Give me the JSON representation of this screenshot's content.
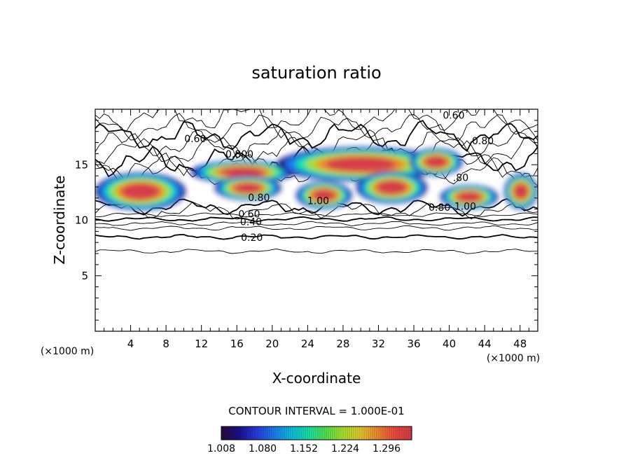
{
  "chart_data": {
    "type": "heatmap",
    "title": "saturation ratio",
    "xlabel": "X-coordinate",
    "ylabel": "Z-coordinate",
    "x_unit_left": "(×1000 m)",
    "x_unit_right": "(×1000 m)",
    "xlim": [
      0,
      50
    ],
    "ylim": [
      0,
      20
    ],
    "xticks": [
      4,
      8,
      12,
      16,
      20,
      24,
      28,
      32,
      36,
      40,
      44,
      48
    ],
    "yticks": [
      5,
      10,
      15
    ],
    "contour_interval_text": "CONTOUR INTERVAL = 1.000E-01",
    "contour_labels": [
      {
        "text": "0.60",
        "x": 40.5,
        "z": 19.4
      },
      {
        "text": "0.60",
        "x": 11.3,
        "z": 17.3
      },
      {
        "text": "0.80",
        "x": 43.8,
        "z": 17.1
      },
      {
        "text": "0.800",
        "x": 16.3,
        "z": 15.9
      },
      {
        "text": "0.80",
        "x": 18.5,
        "z": 12.0
      },
      {
        "text": "1.00",
        "x": 25.2,
        "z": 11.7
      },
      {
        "text": ".80",
        "x": 41.3,
        "z": 13.8
      },
      {
        "text": "0.80",
        "x": 38.9,
        "z": 11.1
      },
      {
        "text": "1.00",
        "x": 41.8,
        "z": 11.2
      },
      {
        "text": "0.60",
        "x": 17.4,
        "z": 10.5
      },
      {
        "text": "0.40",
        "x": 17.6,
        "z": 9.8
      },
      {
        "text": "0.20",
        "x": 17.7,
        "z": 8.4
      }
    ],
    "colorbar": {
      "min": 1.008,
      "max": 1.34,
      "ticks": [
        "1.008",
        "1.080",
        "1.152",
        "1.224",
        "1.296"
      ],
      "colors": [
        "#2a0a3a",
        "#1a0f8c",
        "#2a3ad8",
        "#1e78f0",
        "#10b8e0",
        "#18e0a8",
        "#50e050",
        "#a8e030",
        "#e0c830",
        "#ee8a30",
        "#ec4a3c",
        "#d43c48"
      ]
    },
    "supersaturated_regions": [
      {
        "x": [
          0.0,
          10.2
        ],
        "z": [
          10.9,
          14.3
        ]
      },
      {
        "x": [
          10.8,
          22.5
        ],
        "z": [
          13.3,
          15.4
        ]
      },
      {
        "x": [
          13.5,
          21.0
        ],
        "z": [
          11.8,
          14.0
        ]
      },
      {
        "x": [
          20.5,
          39.5
        ],
        "z": [
          13.5,
          16.6
        ]
      },
      {
        "x": [
          22.7,
          29.0
        ],
        "z": [
          11.0,
          13.5
        ]
      },
      {
        "x": [
          29.5,
          37.5
        ],
        "z": [
          11.5,
          14.4
        ]
      },
      {
        "x": [
          35.5,
          41.5
        ],
        "z": [
          14.0,
          16.5
        ]
      },
      {
        "x": [
          39.0,
          45.5
        ],
        "z": [
          11.0,
          13.2
        ]
      },
      {
        "x": [
          46.2,
          50.0
        ],
        "z": [
          11.0,
          14.2
        ]
      }
    ],
    "grid": false,
    "legend": "bottom"
  }
}
